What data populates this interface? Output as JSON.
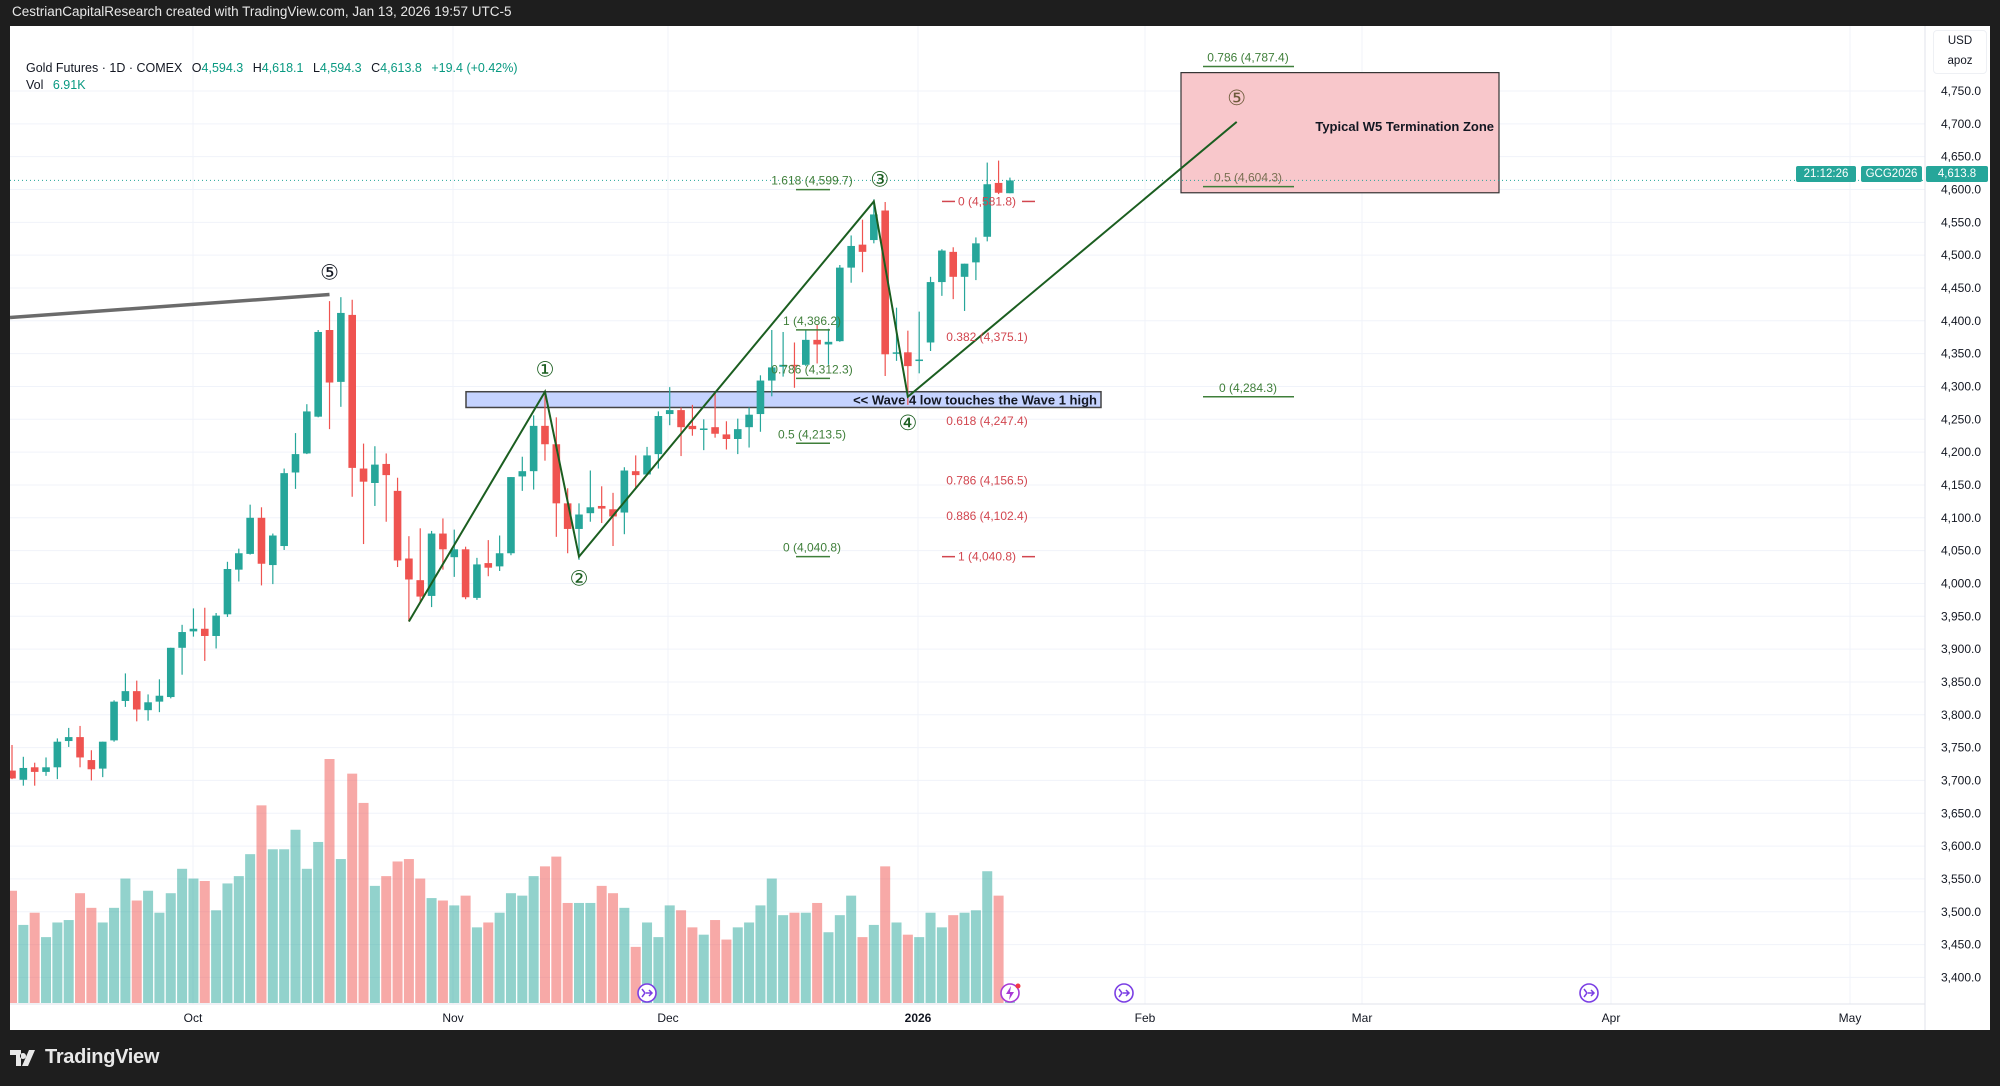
{
  "header": {
    "attribution": "CestrianCapitalResearch created with TradingView.com, Jan 13, 2026 19:57 UTC-5"
  },
  "legend": {
    "symbol": "Gold Futures · 1D · COMEX",
    "open_label": "O",
    "open": "4,594.3",
    "high_label": "H",
    "high": "4,618.1",
    "low_label": "L",
    "low": "4,594.3",
    "close_label": "C",
    "close": "4,613.8",
    "change": "+19.4 (+0.42%)",
    "vol_label": "Vol",
    "vol": "6.91K"
  },
  "price_axis": {
    "currency": "USD",
    "unit": "apoz",
    "ticks": [
      "4,750.0",
      "4,700.0",
      "4,650.0",
      "4,600.0",
      "4,550.0",
      "4,500.0",
      "4,450.0",
      "4,400.0",
      "4,350.0",
      "4,300.0",
      "4,250.0",
      "4,200.0",
      "4,150.0",
      "4,100.0",
      "4,050.0",
      "4,000.0",
      "3,950.0",
      "3,900.0",
      "3,850.0",
      "3,800.0",
      "3,750.0",
      "3,700.0",
      "3,650.0",
      "3,600.0",
      "3,550.0",
      "3,500.0",
      "3,450.0",
      "3,400.0"
    ],
    "current_symbol": "GCG2026",
    "current_price": "4,613.8",
    "countdown": "21:12:26"
  },
  "time_axis": {
    "ticks": [
      "Oct",
      "Nov",
      "Dec",
      "2026",
      "Feb",
      "Mar",
      "Apr",
      "May"
    ]
  },
  "branding": {
    "logo_text": "TradingView"
  },
  "colors": {
    "up": "#26a69a",
    "down": "#ef5350",
    "wave": "#1b5e20",
    "fib_green": "#3f7f3a",
    "fib_red": "#d2464f",
    "zone": "#f8c4c8",
    "box": "#c5d3ff",
    "event": "#7b3fe4"
  },
  "chart_data": {
    "type": "candlestick",
    "title": "Gold Futures · 1D · COMEX",
    "ylim": [
      3400,
      4750
    ],
    "grid": true,
    "candles_ohlc": [
      [
        3715,
        3754,
        3702,
        3703
      ],
      [
        3701,
        3736,
        3692,
        3719
      ],
      [
        3720,
        3727,
        3692,
        3713
      ],
      [
        3713,
        3735,
        3707,
        3720
      ],
      [
        3720,
        3764,
        3702,
        3759
      ],
      [
        3760,
        3780,
        3751,
        3766
      ],
      [
        3766,
        3783,
        3720,
        3735
      ],
      [
        3731,
        3746,
        3700,
        3717
      ],
      [
        3718,
        3759,
        3705,
        3759
      ],
      [
        3761,
        3822,
        3759,
        3820
      ],
      [
        3821,
        3863,
        3812,
        3836
      ],
      [
        3836,
        3852,
        3790,
        3808
      ],
      [
        3807,
        3831,
        3791,
        3819
      ],
      [
        3820,
        3854,
        3804,
        3829
      ],
      [
        3827,
        3902,
        3825,
        3902
      ],
      [
        3902,
        3937,
        3861,
        3926
      ],
      [
        3927,
        3962,
        3919,
        3931
      ],
      [
        3931,
        3963,
        3882,
        3920
      ],
      [
        3920,
        3955,
        3901,
        3951
      ],
      [
        3953,
        4033,
        3949,
        4022
      ],
      [
        4021,
        4053,
        4003,
        4046
      ],
      [
        4045,
        4120,
        4044,
        4100
      ],
      [
        4100,
        4116,
        3997,
        4030
      ],
      [
        4028,
        4076,
        3999,
        4073
      ],
      [
        4057,
        4175,
        4051,
        4168
      ],
      [
        4169,
        4229,
        4144,
        4197
      ],
      [
        4198,
        4273,
        4197,
        4262
      ],
      [
        4254,
        4386,
        4253,
        4383
      ],
      [
        4386,
        4430,
        4235,
        4306
      ],
      [
        4307,
        4436,
        4269,
        4412
      ],
      [
        4409,
        4432,
        4132,
        4176
      ],
      [
        4175,
        4213,
        4060,
        4155
      ],
      [
        4153,
        4209,
        4118,
        4181
      ],
      [
        4182,
        4198,
        4094,
        4165
      ],
      [
        4141,
        4161,
        4025,
        4035
      ],
      [
        4038,
        4072,
        3942,
        4006
      ],
      [
        4005,
        4084,
        3970,
        3980
      ],
      [
        3981,
        4080,
        3964,
        4076
      ],
      [
        4076,
        4099,
        4021,
        4052
      ],
      [
        4040,
        4082,
        4010,
        4052
      ],
      [
        4052,
        4056,
        3976,
        3979
      ],
      [
        3978,
        4039,
        3975,
        4029
      ],
      [
        4031,
        4066,
        4011,
        4024
      ],
      [
        4026,
        4073,
        4019,
        4046
      ],
      [
        4046,
        4162,
        4043,
        4162
      ],
      [
        4163,
        4193,
        4141,
        4171
      ],
      [
        4171,
        4256,
        4143,
        4240
      ],
      [
        4240,
        4292,
        4187,
        4212
      ],
      [
        4212,
        4253,
        4071,
        4122
      ],
      [
        4122,
        4145,
        4046,
        4083
      ],
      [
        4083,
        4122,
        4036,
        4105
      ],
      [
        4107,
        4172,
        4094,
        4116
      ],
      [
        4118,
        4148,
        4092,
        4114
      ],
      [
        4113,
        4138,
        4057,
        4102
      ],
      [
        4108,
        4177,
        4075,
        4172
      ],
      [
        4171,
        4195,
        4146,
        4165
      ],
      [
        4166,
        4208,
        4165,
        4195
      ],
      [
        4197,
        4262,
        4175,
        4255
      ],
      [
        4258,
        4299,
        4241,
        4264
      ],
      [
        4264,
        4268,
        4194,
        4238
      ],
      [
        4240,
        4272,
        4225,
        4235
      ],
      [
        4235,
        4250,
        4203,
        4236
      ],
      [
        4238,
        4291,
        4222,
        4228
      ],
      [
        4227,
        4247,
        4204,
        4220
      ],
      [
        4220,
        4251,
        4197,
        4235
      ],
      [
        4238,
        4268,
        4207,
        4257
      ],
      [
        4258,
        4317,
        4231,
        4309
      ],
      [
        4309,
        4386,
        4285,
        4329
      ],
      [
        4330,
        4383,
        4315,
        4333
      ],
      [
        4333,
        4367,
        4298,
        4331
      ],
      [
        4333,
        4386,
        4331,
        4371
      ],
      [
        4371,
        4394,
        4335,
        4364
      ],
      [
        4364,
        4388,
        4333,
        4368
      ],
      [
        4369,
        4485,
        4368,
        4481
      ],
      [
        4481,
        4530,
        4458,
        4514
      ],
      [
        4516,
        4554,
        4474,
        4505
      ],
      [
        4523,
        4585,
        4518,
        4562
      ],
      [
        4568,
        4581,
        4316,
        4349
      ],
      [
        4350,
        4420,
        4339,
        4352
      ],
      [
        4352,
        4385,
        4272,
        4331
      ],
      [
        4340,
        4414,
        4320,
        4341
      ],
      [
        4367,
        4467,
        4354,
        4459
      ],
      [
        4459,
        4509,
        4438,
        4507
      ],
      [
        4505,
        4512,
        4433,
        4467
      ],
      [
        4467,
        4487,
        4415,
        4487
      ],
      [
        4489,
        4527,
        4462,
        4518
      ],
      [
        4528,
        4641,
        4521,
        4608
      ],
      [
        4610,
        4644,
        4593,
        4595
      ],
      [
        4594.3,
        4618.1,
        4594.3,
        4613.8
      ]
    ],
    "volume_relative_pct": [
      46,
      32,
      37,
      27,
      33,
      34,
      45,
      39,
      33,
      39,
      51,
      42,
      46,
      37,
      45,
      55,
      51,
      50,
      38,
      49,
      52,
      61,
      81,
      63,
      63,
      71,
      55,
      66,
      100,
      59,
      94,
      82,
      48,
      52,
      58,
      59,
      51,
      43,
      42,
      40,
      44,
      31,
      33,
      37,
      45,
      44,
      52,
      56,
      60,
      41,
      41,
      41,
      48,
      45,
      39,
      23,
      33,
      27,
      40,
      38,
      31,
      28,
      34,
      26,
      31,
      33,
      40,
      51,
      36,
      37,
      37,
      41,
      29,
      36,
      44,
      27,
      32,
      56,
      33,
      28,
      27,
      37,
      31,
      36,
      37,
      38,
      54,
      44,
      2
    ],
    "prior_trendline": {
      "from": [
        0,
        4405
      ],
      "to": [
        28,
        4440
      ],
      "label": "⑤"
    },
    "wave_count": [
      {
        "bar": 35,
        "price": 3942,
        "label": ""
      },
      {
        "bar": 47,
        "price": 4292,
        "label": "①"
      },
      {
        "bar": 50,
        "price": 4040.8,
        "label": "②"
      },
      {
        "bar": 76,
        "price": 4581.8,
        "label": "③"
      },
      {
        "bar": 79,
        "price": 4284.3,
        "label": "④"
      },
      {
        "bar": 108,
        "price": 4703,
        "label": "⑤"
      }
    ],
    "fib_extension_left": [
      {
        "label": "1.618 (4,599.7)",
        "price": 4599.7
      },
      {
        "label": "1 (4,386.2)",
        "price": 4386.2
      },
      {
        "label": "0.786 (4,312.3)",
        "price": 4312.3
      },
      {
        "label": "0.5 (4,213.5)",
        "price": 4213.5
      },
      {
        "label": "0 (4,040.8)",
        "price": 4040.8
      }
    ],
    "fib_retracement": [
      {
        "label": "0 (4,581.8)",
        "price": 4581.8,
        "dashes": true
      },
      {
        "label": "0.382 (4,375.1)",
        "price": 4375.1
      },
      {
        "label": "0.618 (4,247.4)",
        "price": 4247.4
      },
      {
        "label": "0.786 (4,156.5)",
        "price": 4156.5
      },
      {
        "label": "0.886 (4,102.4)",
        "price": 4102.4
      },
      {
        "label": "1 (4,040.8)",
        "price": 4040.8,
        "dashes": true
      }
    ],
    "fib_extension_right": [
      {
        "label": "0.786 (4,787.4)",
        "price": 4787.4
      },
      {
        "label": "0.5 (4,604.3)",
        "price": 4604.3
      },
      {
        "label": "0 (4,284.3)",
        "price": 4284.3
      }
    ],
    "annotations": {
      "wave4_box": {
        "text": "<< Wave 4 low touches the Wave 1 high",
        "price_top": 4292,
        "price_bottom": 4268
      },
      "termination_zone": {
        "text": "Typical W5 Termination Zone",
        "price_top": 4778,
        "price_bottom": 4595
      }
    },
    "current_price": 4613.8
  }
}
